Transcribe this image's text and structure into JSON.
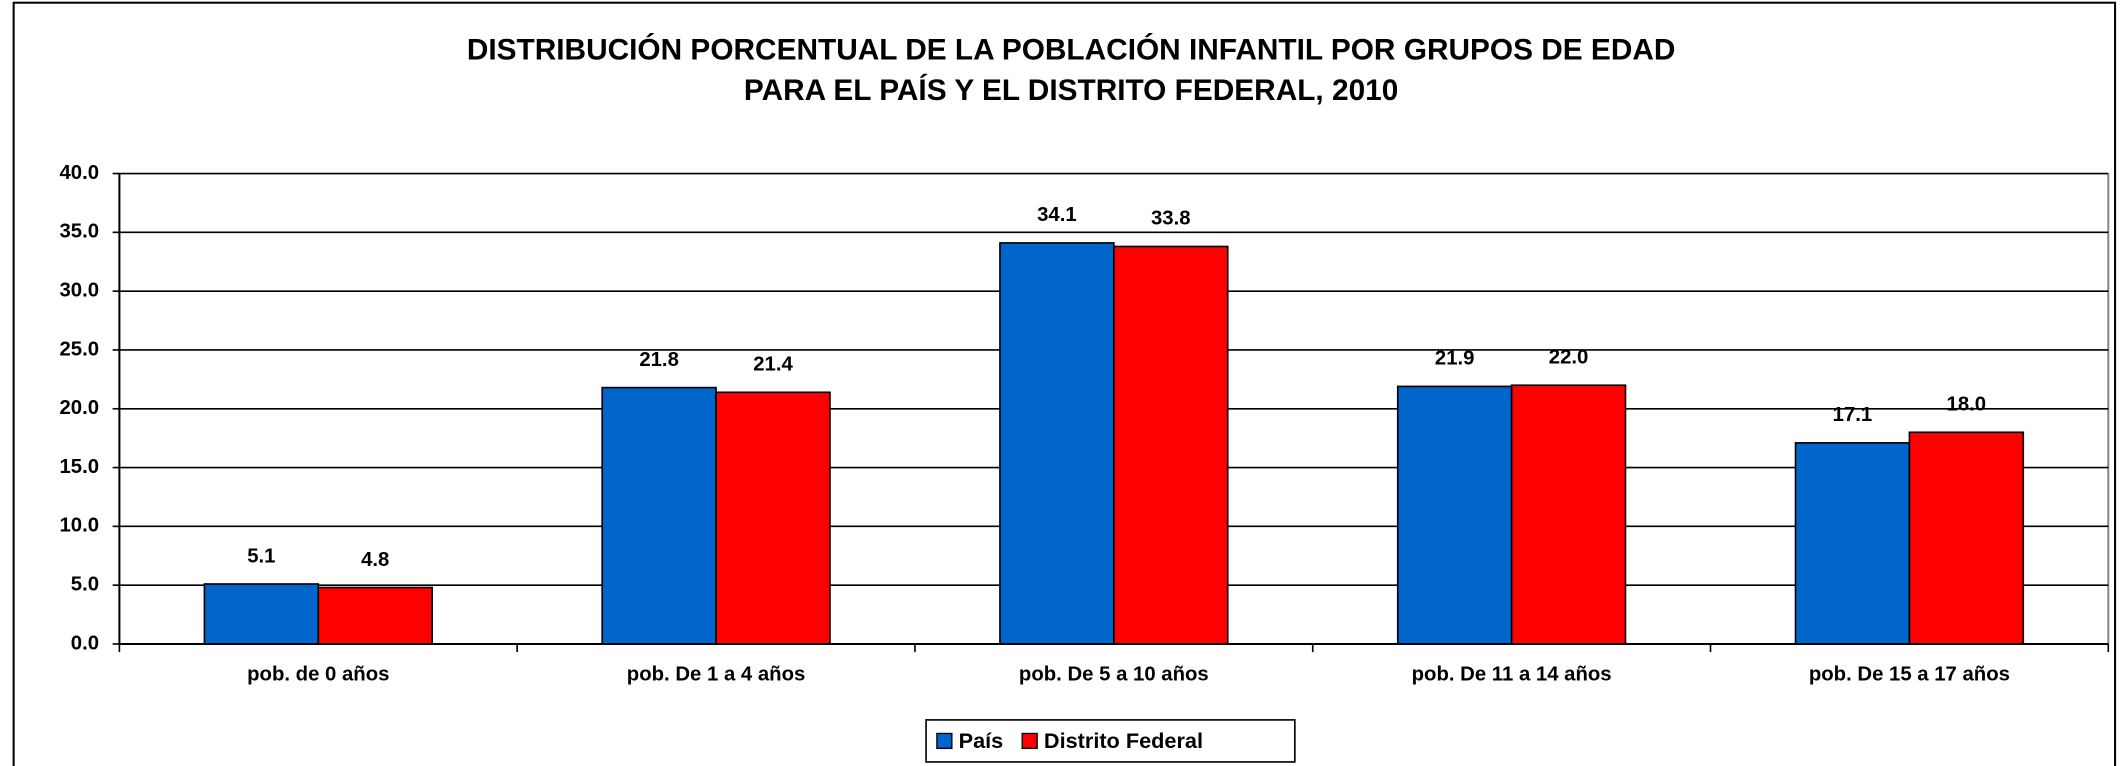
{
  "chart_data": {
    "type": "bar",
    "title": [
      "DISTRIBUCIÓN PORCENTUAL DE LA POBLACIÓN INFANTIL POR GRUPOS DE EDAD",
      "PARA EL PAÍS Y EL DISTRITO FEDERAL, 2010"
    ],
    "categories": [
      "pob. de 0 años",
      "pob. De 1 a 4 años",
      "pob. De 5 a 10 años",
      "pob. De 11 a 14 años",
      "pob. De 15 a 17 años"
    ],
    "series": [
      {
        "name": "País",
        "color": "#0066cc",
        "values": [
          5.1,
          21.8,
          34.1,
          21.9,
          17.1
        ],
        "value_labels": [
          "5.1",
          "21.8",
          "34.1",
          "21.9",
          "17.1"
        ]
      },
      {
        "name": "Distrito Federal",
        "color": "#ff0000",
        "values": [
          4.8,
          21.4,
          33.8,
          22.0,
          18.0
        ],
        "value_labels": [
          "4.8",
          "21.4",
          "33.8",
          "22.0",
          "18.0"
        ]
      }
    ],
    "ylim": [
      0,
      40
    ],
    "yticks": [
      {
        "value": 0,
        "label": "0.0"
      },
      {
        "value": 5,
        "label": "5.0"
      },
      {
        "value": 10,
        "label": "10.0"
      },
      {
        "value": 15,
        "label": "15.0"
      },
      {
        "value": 20,
        "label": "20.0"
      },
      {
        "value": 25,
        "label": "25.0"
      },
      {
        "value": 30,
        "label": "30.0"
      },
      {
        "value": 35,
        "label": "35.0"
      },
      {
        "value": 40,
        "label": "40.0"
      }
    ],
    "grid": true,
    "legend": "bottom"
  }
}
